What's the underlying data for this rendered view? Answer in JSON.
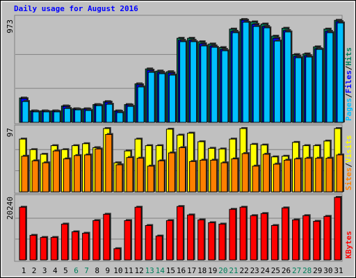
{
  "chart_data": [
    {
      "type": "bar",
      "title": "Daily usage for August 2016",
      "legend_separator": "/",
      "ylim": [
        0,
        973
      ],
      "yticks": [
        973
      ],
      "series": [
        {
          "name": "Hits",
          "color": "#00805c",
          "values": [
            230,
            108,
            108,
            108,
            155,
            128,
            128,
            168,
            196,
            108,
            168,
            364,
            505,
            485,
            479,
            795,
            795,
            762,
            741,
            707,
            882,
            973,
            950,
            930,
            815,
            890,
            641,
            647,
            714,
            882,
            965
          ]
        },
        {
          "name": "Files",
          "color": "#0000ff",
          "values": [
            224,
            105,
            105,
            105,
            151,
            125,
            125,
            164,
            191,
            105,
            164,
            355,
            493,
            473,
            467,
            776,
            776,
            743,
            723,
            690,
            861,
            966,
            927,
            907,
            795,
            868,
            625,
            631,
            697,
            861,
            953
          ]
        },
        {
          "name": "Pages",
          "color": "#00c0ff",
          "values": [
            197,
            99,
            99,
            99,
            131,
            118,
            112,
            158,
            171,
            92,
            151,
            335,
            473,
            460,
            447,
            763,
            763,
            723,
            710,
            677,
            848,
            947,
            907,
            894,
            769,
            855,
            611,
            618,
            690,
            848,
            940
          ]
        }
      ]
    },
    {
      "type": "bar",
      "legend_separator": "/",
      "ylim": [
        0,
        97
      ],
      "yticks": [
        97
      ],
      "series": [
        {
          "name": "Visits",
          "color": "#ffff00",
          "values": [
            80,
            64,
            57,
            70,
            64,
            70,
            73,
            67,
            96,
            44,
            62,
            80,
            70,
            70,
            95,
            86,
            89,
            76,
            66,
            65,
            80,
            96,
            72,
            71,
            53,
            54,
            75,
            70,
            70,
            77,
            96
          ]
        },
        {
          "name": "Sites",
          "color": "#ff8000",
          "values": [
            54,
            47,
            44,
            62,
            50,
            55,
            56,
            65,
            87,
            41,
            52,
            51,
            39,
            47,
            59,
            67,
            46,
            48,
            48,
            44,
            50,
            58,
            39,
            57,
            42,
            48,
            50,
            51,
            51,
            51,
            56
          ]
        }
      ]
    },
    {
      "type": "bar",
      "ylim": [
        0,
        20240
      ],
      "yticks": [
        20240
      ],
      "categories": [
        "1",
        "2",
        "3",
        "4",
        "5",
        "6",
        "7",
        "8",
        "9",
        "10",
        "11",
        "12",
        "13",
        "14",
        "15",
        "16",
        "17",
        "18",
        "19",
        "20",
        "21",
        "22",
        "23",
        "24",
        "25",
        "26",
        "27",
        "28",
        "29",
        "30",
        "31"
      ],
      "category_colors": [
        "#000000",
        "#000000",
        "#000000",
        "#000000",
        "#000000",
        "#00805c",
        "#00805c",
        "#000000",
        "#000000",
        "#000000",
        "#000000",
        "#000000",
        "#00805c",
        "#00805c",
        "#000000",
        "#000000",
        "#000000",
        "#000000",
        "#000000",
        "#00805c",
        "#00805c",
        "#000000",
        "#000000",
        "#000000",
        "#000000",
        "#000000",
        "#00805c",
        "#00805c",
        "#000000",
        "#000000",
        "#000000"
      ],
      "series": [
        {
          "name": "KBytes",
          "color": "#ff0000",
          "values": [
            16867,
            7871,
            7197,
            7197,
            11470,
            8996,
            8546,
            12594,
            14618,
            3598,
            12594,
            16867,
            11020,
            7647,
            12594,
            17092,
            14393,
            12819,
            11919,
            11470,
            16192,
            16867,
            14168,
            14843,
            11020,
            16642,
            12819,
            14168,
            12369,
            13943,
            20015
          ]
        }
      ]
    }
  ]
}
